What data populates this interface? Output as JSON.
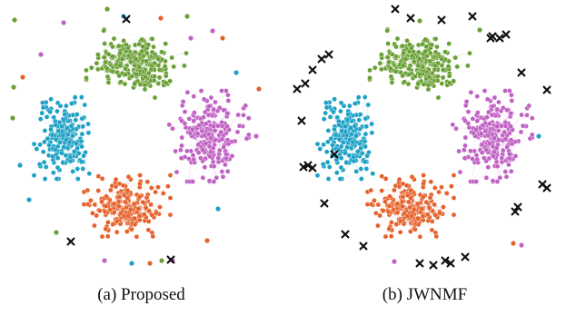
{
  "colors": {
    "green": "#6a9f35",
    "purple": "#c062c4",
    "cyan": "#1ea1c5",
    "orange": "#e5622c",
    "black": "#111111",
    "edge": "#d7d7d7"
  },
  "marker_legend": {
    "dot": "clustered node",
    "cross": "node marked as noise/outlier"
  },
  "panels": [
    {
      "id": "proposed",
      "caption": "(a) Proposed",
      "clusters": [
        {
          "color": "green",
          "count": 230
        },
        {
          "color": "purple",
          "count": 230
        },
        {
          "color": "cyan",
          "count": 200
        },
        {
          "color": "orange",
          "count": 210
        }
      ],
      "outliers": {
        "black_cross": 3,
        "scattered_colored_dots": 26
      }
    },
    {
      "id": "jwnmf",
      "caption": "(b) JWNMF",
      "clusters": [
        {
          "color": "green",
          "count": 230
        },
        {
          "color": "purple",
          "count": 230
        },
        {
          "color": "cyan",
          "count": 200
        },
        {
          "color": "orange",
          "count": 210
        }
      ],
      "outliers": {
        "black_cross": 32,
        "scattered_colored_dots": 6
      }
    }
  ]
}
